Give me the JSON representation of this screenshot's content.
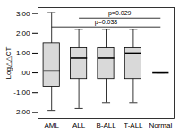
{
  "chart_data": {
    "type": "box",
    "y_label": "Log△△CT",
    "categories": [
      "AML",
      "ALL",
      "B-ALL",
      "T-ALL",
      "Normal"
    ],
    "values": [
      {
        "min": -1.9,
        "q1": -0.7,
        "median": 0.1,
        "q3": 1.5,
        "max": 3.05
      },
      {
        "min": -1.8,
        "q1": -0.3,
        "median": 0.75,
        "q3": 1.25,
        "max": 2.2
      },
      {
        "min": -1.5,
        "q1": -0.3,
        "median": 0.75,
        "q3": 1.25,
        "max": 2.2
      },
      {
        "min": -1.5,
        "q1": -0.3,
        "median": 1.0,
        "q3": 1.25,
        "max": 2.2
      },
      {
        "min": 0,
        "q1": 0,
        "median": 0,
        "q3": 0,
        "max": 0
      }
    ],
    "color": "#d9d9d9",
    "ylim": [
      -2.3,
      3.3
    ],
    "yticks": [
      {
        "value": -2,
        "label": "-2.00"
      },
      {
        "value": -1,
        "label": "-1.00"
      },
      {
        "value": 0,
        "label": ".00"
      },
      {
        "value": 1,
        "label": "1.00"
      },
      {
        "value": 2,
        "label": "2.00"
      },
      {
        "value": 3,
        "label": "3.00"
      }
    ],
    "annotations": [
      {
        "text": "p=0.029",
        "from": "ALL",
        "to": "Normal",
        "y": 2.77
      },
      {
        "text": "p=0.038",
        "from": "AML",
        "to": "Normal",
        "y": 2.32
      }
    ]
  }
}
